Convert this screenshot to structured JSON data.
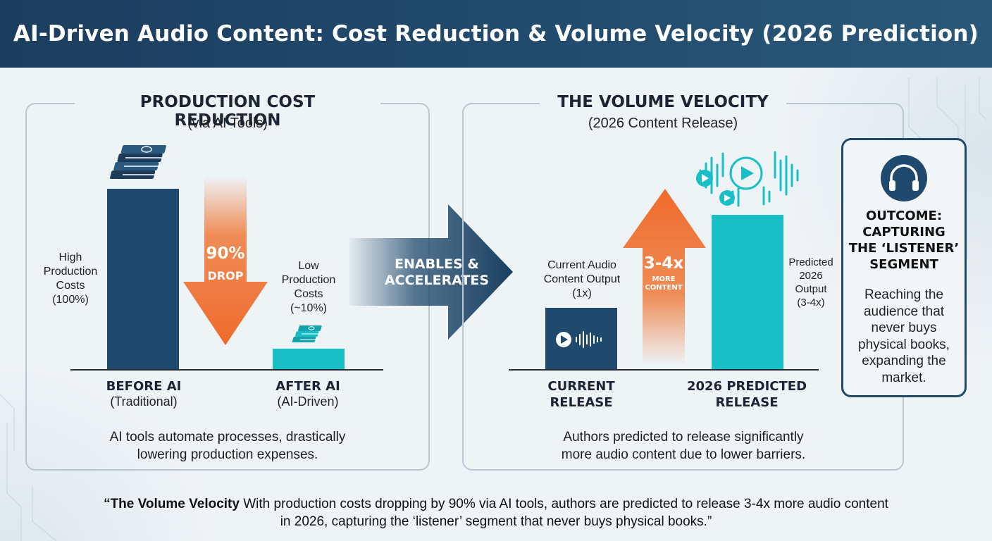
{
  "header": {
    "title": "AI-Driven Audio Content: Cost Reduction & Volume Velocity (2026 Prediction)"
  },
  "left_panel": {
    "title": "PRODUCTION COST REDUCTION",
    "subtitle": "(via AI Tools)",
    "before_label": "High Production Costs (100%)",
    "before_lines": [
      "High",
      "Production",
      "Costs",
      "(100%)"
    ],
    "after_lines": [
      "Low",
      "Production",
      "Costs",
      "(~10%)"
    ],
    "drop_value": "90%",
    "drop_word": "DROP",
    "cat_before": "BEFORE AI",
    "cat_before_sub": "(Traditional)",
    "cat_after": "AFTER AI",
    "cat_after_sub": "(AI-Driven)",
    "caption_lines": [
      "AI tools automate processes, drastically",
      "lowering production expenses."
    ]
  },
  "connector": {
    "lines": [
      "ENABLES &",
      "ACCELERATES"
    ]
  },
  "right_panel": {
    "title": "THE VOLUME VELOCITY",
    "subtitle": "(2026 Content Release)",
    "current_lines": [
      "Current Audio",
      "Content Output",
      "(1x)"
    ],
    "predicted_lines": [
      "Predicted",
      "2026",
      "Output",
      "(3-4x)"
    ],
    "growth_value": "3-4x",
    "growth_lines": [
      "MORE",
      "CONTENT"
    ],
    "cat_current": [
      "CURRENT",
      "RELEASE"
    ],
    "cat_predicted": [
      "2026 PREDICTED",
      "RELEASE"
    ],
    "caption_lines": [
      "Authors predicted to release significantly",
      "more audio content due to lower barriers."
    ]
  },
  "chart_data": [
    {
      "type": "bar",
      "title": "PRODUCTION COST REDUCTION",
      "categories": [
        "BEFORE AI",
        "AFTER AI"
      ],
      "values": [
        100,
        10
      ],
      "ylabel": ""
    },
    {
      "type": "bar",
      "title": "THE VOLUME VELOCITY",
      "categories": [
        "CURRENT RELEASE",
        "2026 PREDICTED RELEASE"
      ],
      "values": [
        1,
        3.5
      ],
      "ylabel": ""
    }
  ],
  "outcome": {
    "title_lines": [
      "OUTCOME:",
      "CAPTURING",
      "THE ‘LISTENER’",
      "SEGMENT"
    ],
    "text_lines": [
      "Reaching the",
      "audience that",
      "never buys",
      "physical books,",
      "expanding the",
      "market."
    ]
  },
  "quote": {
    "bold": "“The Volume Velocity",
    "line1_rest": " With production costs dropping by 90% via AI tools, authors are predicted to release 3-4x more audio content",
    "line2": "in 2026, capturing the ‘listener’ segment that never buys physical books.”"
  },
  "colors": {
    "navy": "#1f4a6d",
    "teal": "#19bfc6",
    "orange": "#ef7a3a",
    "header": "#1c3d5e"
  },
  "icons": [
    "money-stack-icon",
    "audio-waveform-icon",
    "play-icon",
    "headphones-icon"
  ]
}
